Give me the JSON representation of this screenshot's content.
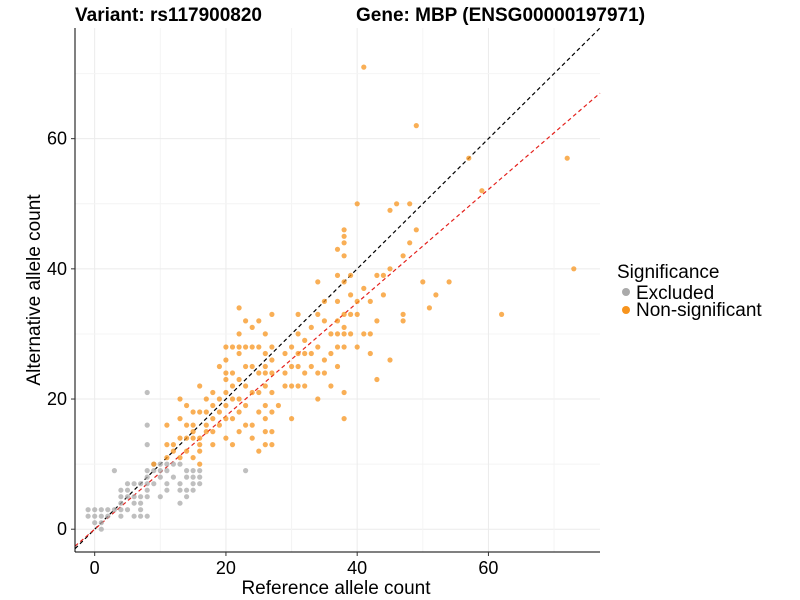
{
  "chart_data": {
    "type": "scatter",
    "title_left": "Variant: rs117900820",
    "title_right": "Gene: MBP (ENSG00000197971)",
    "xlabel": "Reference allele count",
    "ylabel": "Alternative allele count",
    "xlim": [
      -3,
      77
    ],
    "ylim": [
      -3.5,
      77
    ],
    "xticks": [
      0,
      20,
      40,
      60
    ],
    "yticks": [
      0,
      20,
      40,
      60
    ],
    "legend": {
      "title": "Significance",
      "placement": "right",
      "entries": [
        {
          "label": "Excluded",
          "color": "#aaaaaa"
        },
        {
          "label": "Non-significant",
          "color": "#f7941d"
        }
      ]
    },
    "reference_lines": [
      {
        "name": "identity",
        "slope": 1.0,
        "intercept": 0,
        "color": "#000000"
      },
      {
        "name": "fit",
        "slope": 0.87,
        "intercept": 0,
        "color": "#e4211c"
      }
    ],
    "series": [
      {
        "name": "Excluded",
        "color": "#aaaaaa",
        "points": [
          [
            -1,
            2
          ],
          [
            -1,
            3
          ],
          [
            0,
            1
          ],
          [
            0,
            2
          ],
          [
            0,
            3
          ],
          [
            1,
            0
          ],
          [
            1,
            1
          ],
          [
            1,
            2
          ],
          [
            1,
            3
          ],
          [
            2,
            2
          ],
          [
            2,
            3
          ],
          [
            3,
            3
          ],
          [
            3,
            9
          ],
          [
            4,
            2
          ],
          [
            4,
            3
          ],
          [
            4,
            4
          ],
          [
            4,
            5
          ],
          [
            4,
            6
          ],
          [
            5,
            3
          ],
          [
            5,
            5
          ],
          [
            5,
            6
          ],
          [
            5,
            7
          ],
          [
            6,
            2
          ],
          [
            6,
            4
          ],
          [
            6,
            5
          ],
          [
            6,
            7
          ],
          [
            7,
            2
          ],
          [
            7,
            3
          ],
          [
            7,
            4
          ],
          [
            7,
            5
          ],
          [
            7,
            7
          ],
          [
            8,
            2
          ],
          [
            8,
            5
          ],
          [
            8,
            6
          ],
          [
            8,
            7
          ],
          [
            8,
            8
          ],
          [
            8,
            9
          ],
          [
            8,
            13
          ],
          [
            8,
            16
          ],
          [
            8,
            21
          ],
          [
            9,
            7
          ],
          [
            9,
            9
          ],
          [
            9,
            10
          ],
          [
            10,
            5
          ],
          [
            10,
            8
          ],
          [
            10,
            9
          ],
          [
            10,
            10
          ],
          [
            11,
            6
          ],
          [
            11,
            7
          ],
          [
            11,
            9
          ],
          [
            11,
            10
          ],
          [
            12,
            8
          ],
          [
            12,
            10
          ],
          [
            13,
            4
          ],
          [
            13,
            6
          ],
          [
            13,
            7
          ],
          [
            13,
            10
          ],
          [
            14,
            5
          ],
          [
            14,
            6
          ],
          [
            14,
            8
          ],
          [
            14,
            9
          ],
          [
            15,
            6
          ],
          [
            15,
            7
          ],
          [
            15,
            8
          ],
          [
            15,
            9
          ],
          [
            16,
            7
          ],
          [
            16,
            8
          ],
          [
            16,
            9
          ],
          [
            23,
            9
          ]
        ]
      },
      {
        "name": "Non-significant",
        "color": "#f7941d",
        "points": [
          [
            9,
            10
          ],
          [
            11,
            11
          ],
          [
            11,
            13
          ],
          [
            11,
            16
          ],
          [
            12,
            12
          ],
          [
            12,
            13
          ],
          [
            13,
            11
          ],
          [
            13,
            14
          ],
          [
            13,
            17
          ],
          [
            13,
            20
          ],
          [
            14,
            12
          ],
          [
            14,
            14
          ],
          [
            14,
            16
          ],
          [
            14,
            19
          ],
          [
            15,
            11
          ],
          [
            15,
            14
          ],
          [
            15,
            15
          ],
          [
            15,
            16
          ],
          [
            15,
            18
          ],
          [
            16,
            10
          ],
          [
            16,
            12
          ],
          [
            16,
            13
          ],
          [
            16,
            14
          ],
          [
            16,
            18
          ],
          [
            16,
            22
          ],
          [
            17,
            15
          ],
          [
            17,
            16
          ],
          [
            17,
            18
          ],
          [
            17,
            20
          ],
          [
            18,
            13
          ],
          [
            18,
            15
          ],
          [
            18,
            17
          ],
          [
            18,
            19
          ],
          [
            18,
            21
          ],
          [
            19,
            16
          ],
          [
            19,
            18
          ],
          [
            19,
            20
          ],
          [
            19,
            25
          ],
          [
            20,
            14
          ],
          [
            20,
            17
          ],
          [
            20,
            19
          ],
          [
            20,
            21
          ],
          [
            20,
            23
          ],
          [
            20,
            24
          ],
          [
            20,
            26
          ],
          [
            20,
            28
          ],
          [
            21,
            13
          ],
          [
            21,
            17
          ],
          [
            21,
            20
          ],
          [
            21,
            22
          ],
          [
            21,
            24
          ],
          [
            21,
            28
          ],
          [
            22,
            15
          ],
          [
            22,
            18
          ],
          [
            22,
            20
          ],
          [
            22,
            23
          ],
          [
            22,
            27
          ],
          [
            22,
            28
          ],
          [
            22,
            30
          ],
          [
            22,
            34
          ],
          [
            23,
            16
          ],
          [
            23,
            19
          ],
          [
            23,
            22
          ],
          [
            23,
            25
          ],
          [
            23,
            28
          ],
          [
            23,
            32
          ],
          [
            24,
            14
          ],
          [
            24,
            16
          ],
          [
            24,
            21
          ],
          [
            24,
            25
          ],
          [
            24,
            28
          ],
          [
            24,
            31
          ],
          [
            25,
            12
          ],
          [
            25,
            18
          ],
          [
            25,
            21
          ],
          [
            25,
            24
          ],
          [
            25,
            28
          ],
          [
            25,
            32
          ],
          [
            26,
            13
          ],
          [
            26,
            15
          ],
          [
            26,
            17
          ],
          [
            26,
            19
          ],
          [
            26,
            22
          ],
          [
            26,
            24
          ],
          [
            26,
            25
          ],
          [
            26,
            27
          ],
          [
            26,
            30
          ],
          [
            27,
            13
          ],
          [
            27,
            15
          ],
          [
            27,
            18
          ],
          [
            27,
            21
          ],
          [
            27,
            24
          ],
          [
            27,
            26
          ],
          [
            27,
            28
          ],
          [
            27,
            33
          ],
          [
            28,
            19
          ],
          [
            29,
            22
          ],
          [
            29,
            24
          ],
          [
            29,
            27
          ],
          [
            30,
            17
          ],
          [
            30,
            22
          ],
          [
            30,
            25
          ],
          [
            30,
            28
          ],
          [
            31,
            22
          ],
          [
            31,
            25
          ],
          [
            31,
            27
          ],
          [
            31,
            30
          ],
          [
            31,
            33
          ],
          [
            32,
            22
          ],
          [
            32,
            24
          ],
          [
            32,
            27
          ],
          [
            32,
            29
          ],
          [
            33,
            25
          ],
          [
            33,
            27
          ],
          [
            33,
            31
          ],
          [
            34,
            20
          ],
          [
            34,
            24
          ],
          [
            34,
            28
          ],
          [
            34,
            33
          ],
          [
            34,
            38
          ],
          [
            35,
            24
          ],
          [
            35,
            26
          ],
          [
            35,
            32
          ],
          [
            35,
            35
          ],
          [
            36,
            22
          ],
          [
            36,
            27
          ],
          [
            36,
            30
          ],
          [
            37,
            25
          ],
          [
            37,
            28
          ],
          [
            37,
            30
          ],
          [
            37,
            32
          ],
          [
            37,
            35
          ],
          [
            37,
            39
          ],
          [
            37,
            43
          ],
          [
            38,
            17
          ],
          [
            38,
            21
          ],
          [
            38,
            28
          ],
          [
            38,
            30
          ],
          [
            38,
            31
          ],
          [
            38,
            33
          ],
          [
            38,
            38
          ],
          [
            38,
            42
          ],
          [
            38,
            44
          ],
          [
            38,
            45
          ],
          [
            38,
            46
          ],
          [
            39,
            30
          ],
          [
            39,
            33
          ],
          [
            39,
            36
          ],
          [
            39,
            39
          ],
          [
            40,
            28
          ],
          [
            40,
            33
          ],
          [
            40,
            35
          ],
          [
            40,
            50
          ],
          [
            41,
            30
          ],
          [
            41,
            37
          ],
          [
            41,
            71
          ],
          [
            42,
            27
          ],
          [
            42,
            30
          ],
          [
            42,
            35
          ],
          [
            43,
            23
          ],
          [
            43,
            32
          ],
          [
            43,
            39
          ],
          [
            44,
            36
          ],
          [
            44,
            39
          ],
          [
            45,
            26
          ],
          [
            45,
            40
          ],
          [
            45,
            49
          ],
          [
            46,
            50
          ],
          [
            47,
            32
          ],
          [
            47,
            33
          ],
          [
            47,
            42
          ],
          [
            48,
            44
          ],
          [
            48,
            50
          ],
          [
            49,
            46
          ],
          [
            49,
            62
          ],
          [
            50,
            38
          ],
          [
            51,
            34
          ],
          [
            52,
            36
          ],
          [
            54,
            38
          ],
          [
            57,
            57
          ],
          [
            59,
            52
          ],
          [
            62,
            33
          ],
          [
            72,
            57
          ],
          [
            73,
            40
          ]
        ]
      }
    ]
  }
}
